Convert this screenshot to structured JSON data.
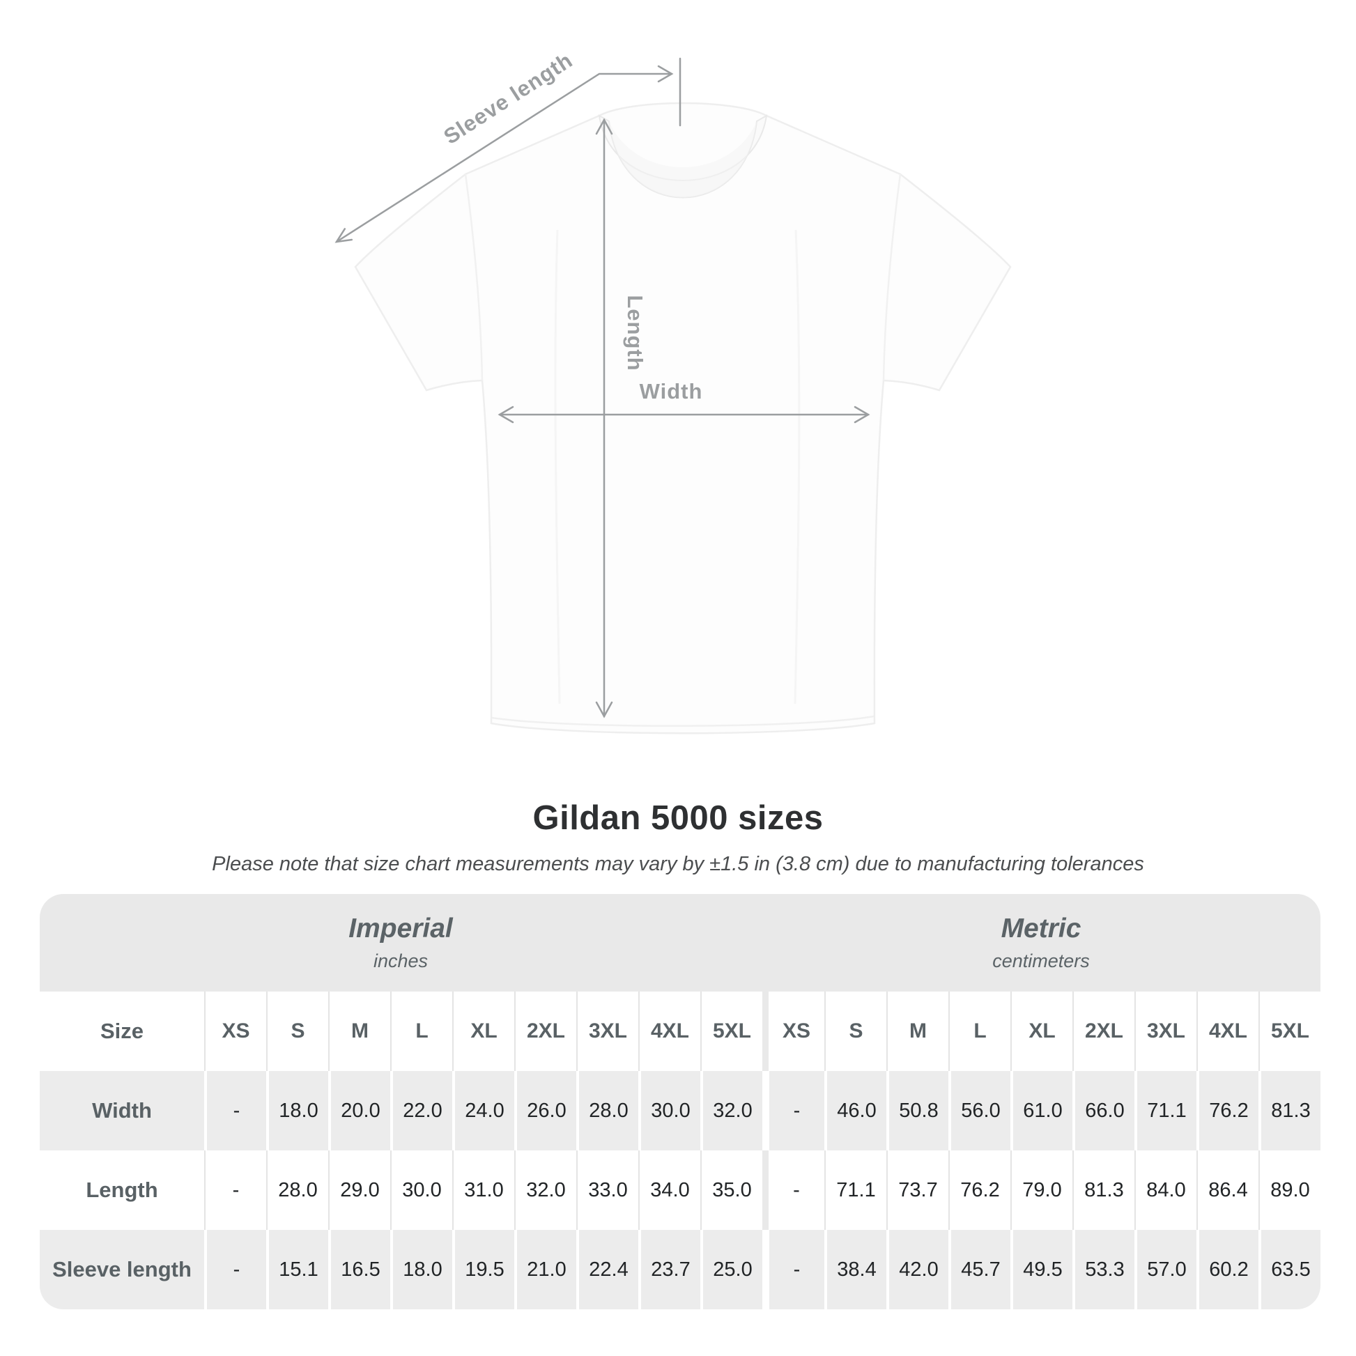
{
  "heading": {
    "title": "Gildan 5000 sizes",
    "subtitle": "Please note that size chart measurements may vary by ±1.5 in (3.8 cm) due to manufacturing tolerances"
  },
  "diagram": {
    "sleeve_length_label": "Sleeve length",
    "length_label": "Length",
    "width_label": "Width"
  },
  "colors": {
    "annotation_gray": "#9b9ea0",
    "band_background": "#e9e9e9",
    "alt_row_background": "#ececec",
    "title_text": "#2e3032",
    "header_text": "#596165",
    "value_text": "#212426"
  },
  "chart_data": {
    "type": "table",
    "title": "Gildan 5000 sizes",
    "note": "Please note that size chart measurements may vary by ±1.5 in (3.8 cm) due to manufacturing tolerances",
    "row_header": "Size",
    "column_groups": [
      {
        "label": "Imperial",
        "unit": "inches",
        "sizes": [
          "XS",
          "S",
          "M",
          "L",
          "XL",
          "2XL",
          "3XL",
          "4XL",
          "5XL"
        ]
      },
      {
        "label": "Metric",
        "unit": "centimeters",
        "sizes": [
          "XS",
          "S",
          "M",
          "L",
          "XL",
          "2XL",
          "3XL",
          "4XL",
          "5XL"
        ]
      }
    ],
    "rows": [
      {
        "label": "Width",
        "values": {
          "imperial": [
            "-",
            "18.0",
            "20.0",
            "22.0",
            "24.0",
            "26.0",
            "28.0",
            "30.0",
            "32.0"
          ],
          "metric": [
            "-",
            "46.0",
            "50.8",
            "56.0",
            "61.0",
            "66.0",
            "71.1",
            "76.2",
            "81.3"
          ]
        }
      },
      {
        "label": "Length",
        "values": {
          "imperial": [
            "-",
            "28.0",
            "29.0",
            "30.0",
            "31.0",
            "32.0",
            "33.0",
            "34.0",
            "35.0"
          ],
          "metric": [
            "-",
            "71.1",
            "73.7",
            "76.2",
            "79.0",
            "81.3",
            "84.0",
            "86.4",
            "89.0"
          ]
        }
      },
      {
        "label": "Sleeve length",
        "values": {
          "imperial": [
            "-",
            "15.1",
            "16.5",
            "18.0",
            "19.5",
            "21.0",
            "22.4",
            "23.7",
            "25.0"
          ],
          "metric": [
            "-",
            "38.4",
            "42.0",
            "45.7",
            "49.5",
            "53.3",
            "57.0",
            "60.2",
            "63.5"
          ]
        }
      }
    ]
  }
}
